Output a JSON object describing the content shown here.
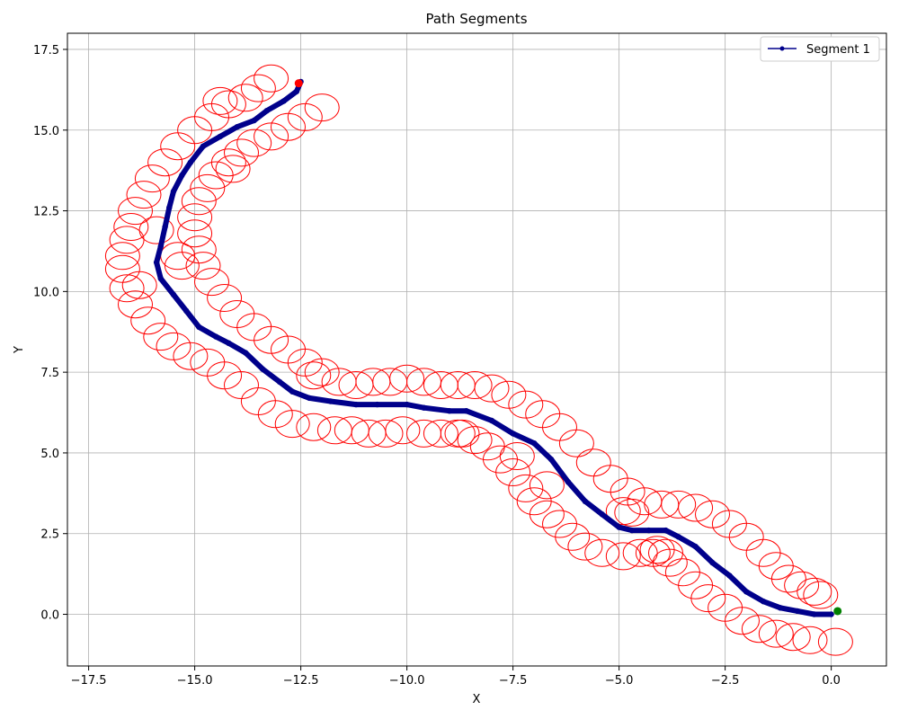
{
  "chart_data": {
    "type": "line",
    "title": "Path Segments",
    "xlabel": "X",
    "ylabel": "Y",
    "xlim": [
      -18.0,
      1.3
    ],
    "ylim": [
      -1.6,
      18.0
    ],
    "xticks": [
      -17.5,
      -15.0,
      -12.5,
      -10.0,
      -7.5,
      -5.0,
      -2.5,
      0.0
    ],
    "xtick_labels": [
      "−17.5",
      "−15.0",
      "−12.5",
      "−10.0",
      "−7.5",
      "−5.0",
      "−2.5",
      "0.0"
    ],
    "yticks": [
      0.0,
      2.5,
      5.0,
      7.5,
      10.0,
      12.5,
      15.0,
      17.5
    ],
    "ytick_labels": [
      "0.0",
      "2.5",
      "5.0",
      "7.5",
      "10.0",
      "12.5",
      "15.0",
      "17.5"
    ],
    "grid": true,
    "legend_placement": "top-right",
    "series": [
      {
        "name": "Segment 1",
        "color": "#00008b",
        "points": [
          [
            0.0,
            0.0
          ],
          [
            -0.4,
            0.0
          ],
          [
            -0.8,
            0.1
          ],
          [
            -1.2,
            0.2
          ],
          [
            -1.6,
            0.4
          ],
          [
            -2.0,
            0.7
          ],
          [
            -2.4,
            1.2
          ],
          [
            -2.8,
            1.6
          ],
          [
            -3.2,
            2.1
          ],
          [
            -3.6,
            2.4
          ],
          [
            -3.9,
            2.6
          ],
          [
            -4.3,
            2.6
          ],
          [
            -4.7,
            2.6
          ],
          [
            -5.0,
            2.7
          ],
          [
            -5.4,
            3.1
          ],
          [
            -5.8,
            3.5
          ],
          [
            -6.2,
            4.1
          ],
          [
            -6.6,
            4.8
          ],
          [
            -7.0,
            5.3
          ],
          [
            -7.5,
            5.6
          ],
          [
            -8.0,
            6.0
          ],
          [
            -8.6,
            6.3
          ],
          [
            -9.0,
            6.3
          ],
          [
            -9.6,
            6.4
          ],
          [
            -10.0,
            6.5
          ],
          [
            -10.7,
            6.5
          ],
          [
            -11.2,
            6.5
          ],
          [
            -11.8,
            6.6
          ],
          [
            -12.3,
            6.7
          ],
          [
            -12.7,
            6.9
          ],
          [
            -13.0,
            7.2
          ],
          [
            -13.4,
            7.6
          ],
          [
            -13.8,
            8.1
          ],
          [
            -14.2,
            8.4
          ],
          [
            -14.5,
            8.6
          ],
          [
            -14.9,
            8.9
          ],
          [
            -15.2,
            9.4
          ],
          [
            -15.5,
            9.9
          ],
          [
            -15.8,
            10.4
          ],
          [
            -15.9,
            10.9
          ],
          [
            -15.8,
            11.4
          ],
          [
            -15.7,
            12.0
          ],
          [
            -15.6,
            12.6
          ],
          [
            -15.5,
            13.1
          ],
          [
            -15.3,
            13.6
          ],
          [
            -15.1,
            14.0
          ],
          [
            -14.8,
            14.5
          ],
          [
            -14.4,
            14.8
          ],
          [
            -14.0,
            15.1
          ],
          [
            -13.6,
            15.3
          ],
          [
            -13.3,
            15.6
          ],
          [
            -12.9,
            15.9
          ],
          [
            -12.6,
            16.2
          ],
          [
            -12.5,
            16.5
          ]
        ]
      }
    ],
    "start_point": {
      "x": 0.15,
      "y": 0.1,
      "color": "#008000"
    },
    "end_point": {
      "x": -12.55,
      "y": 16.45,
      "color": "#ff0000"
    },
    "obstacle_color": "#ff0000",
    "obstacles": [
      [
        0.1,
        -0.85
      ],
      [
        -0.5,
        -0.8
      ],
      [
        -0.9,
        -0.7
      ],
      [
        -1.3,
        -0.6
      ],
      [
        -1.7,
        -0.45
      ],
      [
        -2.1,
        -0.2
      ],
      [
        -2.5,
        0.2
      ],
      [
        -2.9,
        0.5
      ],
      [
        -3.2,
        0.9
      ],
      [
        -3.5,
        1.3
      ],
      [
        -3.8,
        1.6
      ],
      [
        -4.2,
        1.9
      ],
      [
        -4.5,
        1.9
      ],
      [
        -4.9,
        1.8
      ],
      [
        -5.4,
        1.9
      ],
      [
        -5.8,
        2.1
      ],
      [
        -6.1,
        2.4
      ],
      [
        -6.4,
        2.8
      ],
      [
        -6.7,
        3.1
      ],
      [
        -7.0,
        3.5
      ],
      [
        -7.2,
        3.9
      ],
      [
        -7.5,
        4.4
      ],
      [
        -7.8,
        4.8
      ],
      [
        -8.1,
        5.2
      ],
      [
        -8.4,
        5.4
      ],
      [
        -8.8,
        5.6
      ],
      [
        -9.2,
        5.6
      ],
      [
        -9.6,
        5.6
      ],
      [
        -10.1,
        5.7
      ],
      [
        -10.5,
        5.6
      ],
      [
        -10.9,
        5.6
      ],
      [
        -11.3,
        5.7
      ],
      [
        -11.7,
        5.7
      ],
      [
        -12.2,
        5.8
      ],
      [
        -12.7,
        5.9
      ],
      [
        -13.1,
        6.2
      ],
      [
        -13.5,
        6.6
      ],
      [
        -13.9,
        7.1
      ],
      [
        -14.3,
        7.4
      ],
      [
        -14.7,
        7.8
      ],
      [
        -15.1,
        8.0
      ],
      [
        -15.5,
        8.3
      ],
      [
        -15.8,
        8.6
      ],
      [
        -16.1,
        9.1
      ],
      [
        -16.4,
        9.6
      ],
      [
        -16.6,
        10.1
      ],
      [
        -16.7,
        10.7
      ],
      [
        -16.7,
        11.1
      ],
      [
        -16.6,
        11.6
      ],
      [
        -16.5,
        12.0
      ],
      [
        -16.4,
        12.5
      ],
      [
        -16.2,
        13.0
      ],
      [
        -16.0,
        13.5
      ],
      [
        -15.7,
        14.0
      ],
      [
        -15.4,
        14.5
      ],
      [
        -15.0,
        15.0
      ],
      [
        -14.6,
        15.4
      ],
      [
        -14.2,
        15.8
      ],
      [
        -13.8,
        16.0
      ],
      [
        -13.5,
        16.3
      ],
      [
        -13.2,
        16.6
      ],
      [
        -12.0,
        15.7
      ],
      [
        -12.4,
        15.4
      ],
      [
        -12.8,
        15.1
      ],
      [
        -13.2,
        14.8
      ],
      [
        -13.6,
        14.6
      ],
      [
        -13.9,
        14.3
      ],
      [
        -14.2,
        14.0
      ],
      [
        -14.5,
        13.6
      ],
      [
        -14.7,
        13.2
      ],
      [
        -14.9,
        12.8
      ],
      [
        -15.0,
        12.3
      ],
      [
        -15.0,
        11.8
      ],
      [
        -14.9,
        11.3
      ],
      [
        -14.8,
        10.8
      ],
      [
        -14.6,
        10.3
      ],
      [
        -14.3,
        9.8
      ],
      [
        -14.0,
        9.3
      ],
      [
        -13.6,
        8.9
      ],
      [
        -13.2,
        8.5
      ],
      [
        -12.8,
        8.2
      ],
      [
        -12.4,
        7.8
      ],
      [
        -12.0,
        7.5
      ],
      [
        -11.6,
        7.2
      ],
      [
        -11.2,
        7.1
      ],
      [
        -10.8,
        7.2
      ],
      [
        -10.4,
        7.2
      ],
      [
        -10.0,
        7.3
      ],
      [
        -9.6,
        7.2
      ],
      [
        -9.2,
        7.1
      ],
      [
        -8.8,
        7.1
      ],
      [
        -8.4,
        7.1
      ],
      [
        -8.0,
        7.0
      ],
      [
        -7.6,
        6.8
      ],
      [
        -7.2,
        6.5
      ],
      [
        -6.8,
        6.2
      ],
      [
        -6.4,
        5.8
      ],
      [
        -6.0,
        5.3
      ],
      [
        -5.6,
        4.7
      ],
      [
        -5.2,
        4.2
      ],
      [
        -4.8,
        3.8
      ],
      [
        -4.4,
        3.5
      ],
      [
        -4.0,
        3.4
      ],
      [
        -3.6,
        3.4
      ],
      [
        -3.2,
        3.3
      ],
      [
        -2.8,
        3.1
      ],
      [
        -2.4,
        2.8
      ],
      [
        -2.0,
        2.4
      ],
      [
        -1.6,
        1.9
      ],
      [
        -1.3,
        1.5
      ],
      [
        -1.0,
        1.1
      ],
      [
        -0.7,
        0.9
      ],
      [
        -0.4,
        0.7
      ],
      [
        -0.25,
        0.6
      ],
      [
        -4.9,
        3.2
      ],
      [
        -4.7,
        3.15
      ],
      [
        -4.1,
        2.0
      ],
      [
        -3.9,
        1.9
      ],
      [
        -7.4,
        4.9
      ],
      [
        -8.7,
        5.6
      ],
      [
        -15.3,
        10.8
      ],
      [
        -15.4,
        11.1
      ],
      [
        -12.2,
        7.4
      ],
      [
        -14.1,
        13.8
      ],
      [
        -14.4,
        15.9
      ],
      [
        -15.9,
        11.9
      ],
      [
        -16.3,
        10.2
      ],
      [
        -6.7,
        4.0
      ]
    ]
  }
}
